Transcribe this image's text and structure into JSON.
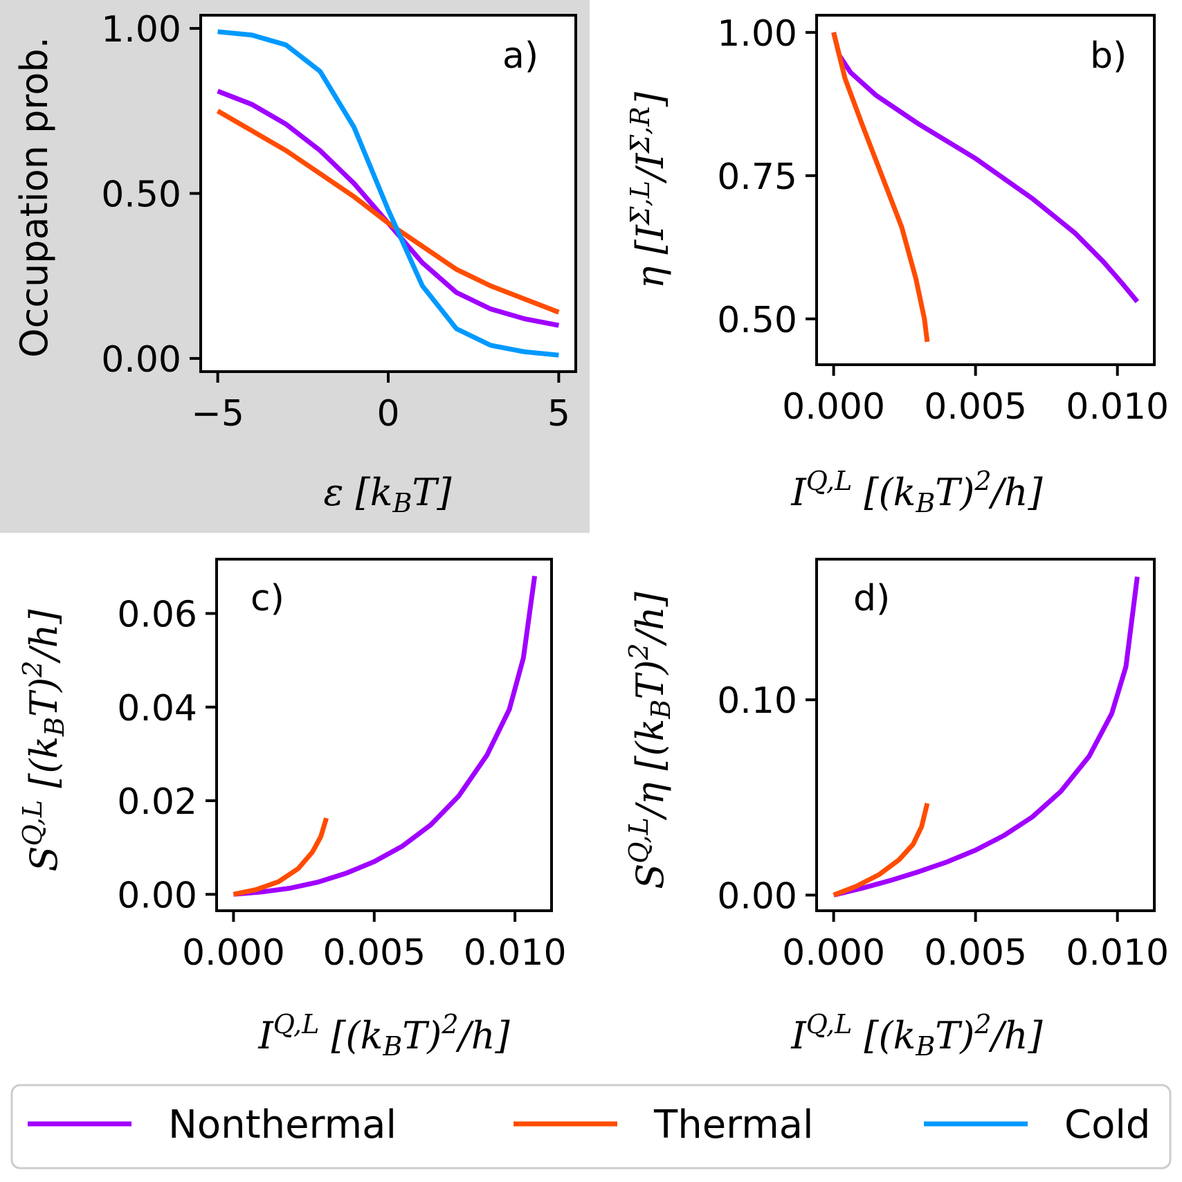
{
  "colors": {
    "nonthermal": "#a000ff",
    "thermal": "#ff4c00",
    "cold": "#0099ff",
    "panel_a_background": "#d9d9d9"
  },
  "legend": {
    "placement": "bottom",
    "entries": [
      {
        "label": "Nonthermal",
        "color": "#a000ff"
      },
      {
        "label": "Thermal",
        "color": "#ff4c00"
      },
      {
        "label": "Cold",
        "color": "#0099ff"
      }
    ]
  },
  "chart_data": [
    {
      "panel": "a)",
      "type": "line",
      "xlabel": "ε [k_B T]",
      "ylabel": "Occupation prob.",
      "xlim": [
        -5.5,
        5.5
      ],
      "ylim": [
        -0.04,
        1.04
      ],
      "x_ticks": [
        -5,
        0,
        5
      ],
      "x_tick_labels": [
        "−5",
        "0",
        "5"
      ],
      "y_ticks": [
        0,
        0.5,
        1.0
      ],
      "y_tick_labels": [
        "0.00",
        "0.50",
        "1.00"
      ],
      "series": [
        {
          "name": "Nonthermal",
          "color": "#a000ff",
          "x": [
            -5,
            -4,
            -3,
            -2,
            -1,
            0,
            1,
            2,
            3,
            4,
            5
          ],
          "y": [
            0.81,
            0.77,
            0.71,
            0.63,
            0.53,
            0.41,
            0.29,
            0.2,
            0.15,
            0.12,
            0.1
          ]
        },
        {
          "name": "Thermal",
          "color": "#ff4c00",
          "x": [
            -5,
            -4,
            -3,
            -2,
            -1,
            0,
            1,
            2,
            3,
            4,
            5
          ],
          "y": [
            0.75,
            0.69,
            0.63,
            0.56,
            0.49,
            0.41,
            0.34,
            0.27,
            0.22,
            0.18,
            0.14
          ]
        },
        {
          "name": "Cold",
          "color": "#0099ff",
          "x": [
            -5,
            -4,
            -3,
            -2,
            -1,
            0,
            1,
            2,
            3,
            4,
            5
          ],
          "y": [
            0.99,
            0.98,
            0.95,
            0.87,
            0.7,
            0.45,
            0.22,
            0.09,
            0.04,
            0.02,
            0.01
          ]
        }
      ]
    },
    {
      "panel": "b)",
      "type": "line",
      "xlabel": "I^{Q,L} [(k_B T)^2/h]",
      "ylabel": "η [I^{Σ,L}/I^{Σ,R}]",
      "xlim": [
        -0.0006,
        0.0113
      ],
      "ylim": [
        0.42,
        1.03
      ],
      "x_ticks": [
        0,
        0.005,
        0.01
      ],
      "x_tick_labels": [
        "0.000",
        "0.005",
        "0.010"
      ],
      "y_ticks": [
        0.5,
        0.75,
        1.0
      ],
      "y_tick_labels": [
        "0.50",
        "0.75",
        "1.00"
      ],
      "series": [
        {
          "name": "Nonthermal",
          "color": "#a000ff",
          "x": [
            0,
            0.0002,
            0.0006,
            0.0015,
            0.003,
            0.005,
            0.007,
            0.0085,
            0.0095,
            0.0102,
            0.0107
          ],
          "y": [
            1.0,
            0.96,
            0.93,
            0.89,
            0.84,
            0.78,
            0.71,
            0.65,
            0.6,
            0.56,
            0.53
          ]
        },
        {
          "name": "Thermal",
          "color": "#ff4c00",
          "x": [
            0,
            0.0004,
            0.001,
            0.0017,
            0.0024,
            0.0029,
            0.0032,
            0.0033
          ],
          "y": [
            1.0,
            0.92,
            0.84,
            0.75,
            0.66,
            0.57,
            0.5,
            0.46
          ]
        }
      ]
    },
    {
      "panel": "c)",
      "type": "line",
      "xlabel": "I^{Q,L} [(k_B T)^2/h]",
      "ylabel": "S^{Q,L} [(k_B T)^2/h]",
      "xlim": [
        -0.0006,
        0.0113
      ],
      "ylim": [
        -0.0035,
        0.0716
      ],
      "x_ticks": [
        0,
        0.005,
        0.01
      ],
      "x_tick_labels": [
        "0.000",
        "0.005",
        "0.010"
      ],
      "y_ticks": [
        0,
        0.02,
        0.04,
        0.06
      ],
      "y_tick_labels": [
        "0.00",
        "0.02",
        "0.04",
        "0.06"
      ],
      "series": [
        {
          "name": "Nonthermal",
          "color": "#a000ff",
          "x": [
            0,
            0.001,
            0.002,
            0.003,
            0.004,
            0.005,
            0.006,
            0.007,
            0.008,
            0.009,
            0.0098,
            0.0103,
            0.0107
          ],
          "y": [
            0,
            0.0005,
            0.0013,
            0.0026,
            0.0045,
            0.007,
            0.0103,
            0.0148,
            0.021,
            0.0297,
            0.0395,
            0.0505,
            0.068
          ]
        },
        {
          "name": "Thermal",
          "color": "#ff4c00",
          "x": [
            0,
            0.0008,
            0.0016,
            0.0023,
            0.0028,
            0.0031,
            0.0033
          ],
          "y": [
            0,
            0.001,
            0.0027,
            0.0055,
            0.009,
            0.0123,
            0.0163
          ]
        }
      ]
    },
    {
      "panel": "d)",
      "type": "line",
      "xlabel": "I^{Q,L} [(k_B T)^2/h]",
      "ylabel": "S^{Q,L}/η [(k_B T)^2/h]",
      "xlim": [
        -0.0006,
        0.0113
      ],
      "ylim": [
        -0.008,
        0.172
      ],
      "x_ticks": [
        0,
        0.005,
        0.01
      ],
      "x_tick_labels": [
        "0.000",
        "0.005",
        "0.010"
      ],
      "y_ticks": [
        0,
        0.1
      ],
      "y_tick_labels": [
        "0.00",
        "0.10"
      ],
      "series": [
        {
          "name": "Nonthermal",
          "color": "#a000ff",
          "x": [
            0,
            0.001,
            0.002,
            0.003,
            0.004,
            0.005,
            0.006,
            0.007,
            0.008,
            0.009,
            0.0098,
            0.0103,
            0.0107
          ],
          "y": [
            0,
            0.0035,
            0.0075,
            0.012,
            0.017,
            0.023,
            0.0305,
            0.04,
            0.053,
            0.071,
            0.093,
            0.117,
            0.163
          ]
        },
        {
          "name": "Thermal",
          "color": "#ff4c00",
          "x": [
            0,
            0.0008,
            0.0016,
            0.0023,
            0.0028,
            0.0031,
            0.0033
          ],
          "y": [
            0,
            0.0045,
            0.0105,
            0.018,
            0.026,
            0.035,
            0.047
          ]
        }
      ]
    }
  ]
}
